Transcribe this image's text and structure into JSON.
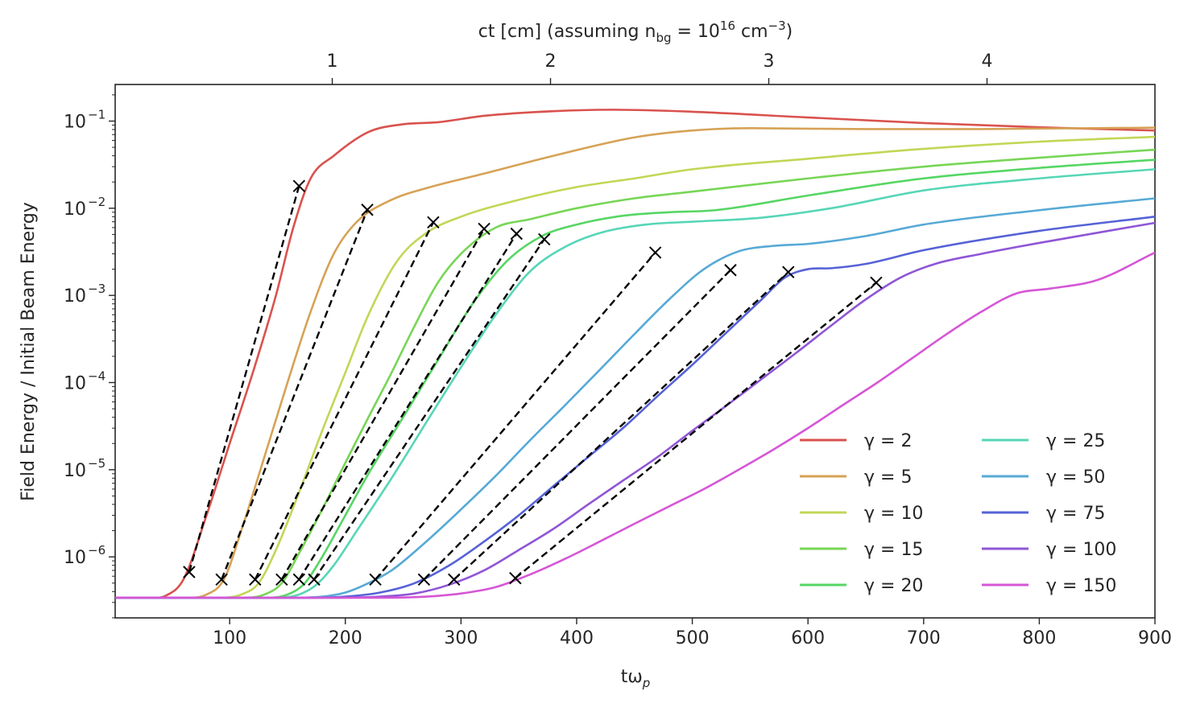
{
  "chart_data": {
    "type": "line",
    "xlabel_main": "tω",
    "xlabel_sub": "p",
    "ylabel": "Field Energy / Initial Beam Energy",
    "top_axis_label": {
      "main": "ct [cm]  (assuming n",
      "sub": "bg",
      "mid": " = 10",
      "sup1": "16",
      "unit": " cm",
      "sup2": "−3",
      "end": ")"
    },
    "top_axis": {
      "ticks": [
        1,
        2,
        3,
        4
      ],
      "x_per_unit": 188.7
    },
    "xlim": [
      1,
      900
    ],
    "ylim_log10": [
      -6.7,
      -0.58
    ],
    "xticks": [
      100,
      200,
      300,
      400,
      500,
      600,
      700,
      800,
      900
    ],
    "yticks": [
      {
        "exp": -1,
        "label": "10",
        "sup": "−1"
      },
      {
        "exp": -2,
        "label": "10",
        "sup": "−2"
      },
      {
        "exp": -3,
        "label": "10",
        "sup": "−3"
      },
      {
        "exp": -4,
        "label": "10",
        "sup": "−4"
      },
      {
        "exp": -5,
        "label": "10",
        "sup": "−5"
      },
      {
        "exp": -6,
        "label": "10",
        "sup": "−6"
      }
    ],
    "legend": {
      "position": "lower-right",
      "columns": 2
    },
    "series": [
      {
        "name": "γ = 2",
        "color": "#d9524e",
        "points": [
          [
            1,
            3.4e-07
          ],
          [
            30,
            3.4e-07
          ],
          [
            45,
            3.6e-07
          ],
          [
            60,
            5.5e-07
          ],
          [
            80,
            3e-06
          ],
          [
            100,
            2e-05
          ],
          [
            120,
            0.00013
          ],
          [
            140,
            0.001
          ],
          [
            155,
            0.006
          ],
          [
            170,
            0.022
          ],
          [
            190,
            0.04
          ],
          [
            220,
            0.075
          ],
          [
            250,
            0.092
          ],
          [
            280,
            0.097
          ],
          [
            320,
            0.115
          ],
          [
            380,
            0.13
          ],
          [
            430,
            0.135
          ],
          [
            500,
            0.128
          ],
          [
            600,
            0.11
          ],
          [
            700,
            0.095
          ],
          [
            800,
            0.085
          ],
          [
            900,
            0.078
          ]
        ],
        "fit": [
          [
            65,
            6.7e-07
          ],
          [
            160,
            0.018
          ]
        ]
      },
      {
        "name": "γ = 5",
        "color": "#d6a256",
        "points": [
          [
            1,
            3.4e-07
          ],
          [
            60,
            3.4e-07
          ],
          [
            80,
            3.7e-07
          ],
          [
            95,
            5.5e-07
          ],
          [
            110,
            2e-06
          ],
          [
            130,
            1.4e-05
          ],
          [
            150,
            0.0001
          ],
          [
            170,
            0.00065
          ],
          [
            190,
            0.003
          ],
          [
            210,
            0.007
          ],
          [
            240,
            0.0125
          ],
          [
            270,
            0.017
          ],
          [
            320,
            0.025
          ],
          [
            380,
            0.04
          ],
          [
            450,
            0.065
          ],
          [
            500,
            0.078
          ],
          [
            550,
            0.083
          ],
          [
            650,
            0.081
          ],
          [
            750,
            0.081
          ],
          [
            900,
            0.084
          ]
        ],
        "fit": [
          [
            93,
            5.5e-07
          ],
          [
            219,
            0.0096
          ]
        ]
      },
      {
        "name": "γ = 10",
        "color": "#c3d656",
        "points": [
          [
            1,
            3.4e-07
          ],
          [
            90,
            3.4e-07
          ],
          [
            110,
            3.7e-07
          ],
          [
            125,
            5e-07
          ],
          [
            140,
            1.2e-06
          ],
          [
            160,
            5.5e-06
          ],
          [
            180,
            2.8e-05
          ],
          [
            200,
            0.00013
          ],
          [
            220,
            0.0006
          ],
          [
            245,
            0.0025
          ],
          [
            270,
            0.0052
          ],
          [
            300,
            0.008
          ],
          [
            350,
            0.0125
          ],
          [
            400,
            0.0175
          ],
          [
            450,
            0.022
          ],
          [
            500,
            0.028
          ],
          [
            600,
            0.037
          ],
          [
            700,
            0.048
          ],
          [
            800,
            0.058
          ],
          [
            900,
            0.066
          ]
        ],
        "fit": [
          [
            122,
            5.5e-07
          ],
          [
            276,
            0.0069
          ]
        ]
      },
      {
        "name": "γ = 15",
        "color": "#77d656",
        "points": [
          [
            1,
            3.4e-07
          ],
          [
            110,
            3.4e-07
          ],
          [
            130,
            3.7e-07
          ],
          [
            145,
            5e-07
          ],
          [
            160,
            1.1e-06
          ],
          [
            180,
            3.5e-06
          ],
          [
            200,
            1.2e-05
          ],
          [
            220,
            4e-05
          ],
          [
            240,
            0.00013
          ],
          [
            260,
            0.00045
          ],
          [
            280,
            0.0014
          ],
          [
            300,
            0.003
          ],
          [
            330,
            0.006
          ],
          [
            360,
            0.0075
          ],
          [
            400,
            0.01
          ],
          [
            450,
            0.013
          ],
          [
            500,
            0.0155
          ],
          [
            600,
            0.022
          ],
          [
            700,
            0.03
          ],
          [
            800,
            0.038
          ],
          [
            900,
            0.047
          ]
        ],
        "fit": [
          [
            145,
            5.5e-07
          ],
          [
            320,
            0.0058
          ]
        ]
      },
      {
        "name": "γ = 20",
        "color": "#56d664",
        "points": [
          [
            1,
            3.4e-07
          ],
          [
            130,
            3.4e-07
          ],
          [
            150,
            3.7e-07
          ],
          [
            165,
            5e-07
          ],
          [
            180,
            1e-06
          ],
          [
            200,
            3e-06
          ],
          [
            220,
            9e-06
          ],
          [
            250,
            4e-05
          ],
          [
            280,
            0.00018
          ],
          [
            310,
            0.0008
          ],
          [
            340,
            0.0025
          ],
          [
            370,
            0.0048
          ],
          [
            400,
            0.0065
          ],
          [
            440,
            0.0082
          ],
          [
            480,
            0.009
          ],
          [
            520,
            0.0095
          ],
          [
            600,
            0.014
          ],
          [
            700,
            0.022
          ],
          [
            800,
            0.029
          ],
          [
            900,
            0.036
          ]
        ],
        "fit": [
          [
            160,
            5.5e-07
          ],
          [
            348,
            0.0051
          ]
        ]
      },
      {
        "name": "γ = 25",
        "color": "#56d6b6",
        "points": [
          [
            1,
            3.4e-07
          ],
          [
            140,
            3.4e-07
          ],
          [
            160,
            3.7e-07
          ],
          [
            175,
            4.8e-07
          ],
          [
            190,
            8e-07
          ],
          [
            210,
            2e-06
          ],
          [
            240,
            8e-06
          ],
          [
            270,
            3.5e-05
          ],
          [
            300,
            0.00015
          ],
          [
            330,
            0.0006
          ],
          [
            360,
            0.0019
          ],
          [
            390,
            0.0036
          ],
          [
            420,
            0.0052
          ],
          [
            460,
            0.0065
          ],
          [
            500,
            0.007
          ],
          [
            560,
            0.0078
          ],
          [
            620,
            0.01
          ],
          [
            700,
            0.016
          ],
          [
            800,
            0.022
          ],
          [
            900,
            0.028
          ]
        ],
        "fit": [
          [
            173,
            5.5e-07
          ],
          [
            372,
            0.0044
          ]
        ]
      },
      {
        "name": "γ = 50",
        "color": "#56a9d6",
        "points": [
          [
            1,
            3.4e-07
          ],
          [
            150,
            3.4e-07
          ],
          [
            180,
            3.5e-07
          ],
          [
            200,
            3.9e-07
          ],
          [
            220,
            5e-07
          ],
          [
            240,
            7e-07
          ],
          [
            270,
            1.5e-06
          ],
          [
            300,
            3.5e-06
          ],
          [
            330,
            8.5e-06
          ],
          [
            360,
            2.2e-05
          ],
          [
            390,
            5.5e-05
          ],
          [
            420,
            0.00014
          ],
          [
            450,
            0.00036
          ],
          [
            480,
            0.0009
          ],
          [
            510,
            0.002
          ],
          [
            540,
            0.0032
          ],
          [
            570,
            0.0037
          ],
          [
            600,
            0.0039
          ],
          [
            650,
            0.0048
          ],
          [
            700,
            0.0065
          ],
          [
            800,
            0.0095
          ],
          [
            900,
            0.013
          ]
        ],
        "fit": [
          [
            226,
            5.5e-07
          ],
          [
            468,
            0.0031
          ]
        ]
      },
      {
        "name": "γ = 75",
        "color": "#5662d6",
        "points": [
          [
            1,
            3.4e-07
          ],
          [
            170,
            3.4e-07
          ],
          [
            200,
            3.5e-07
          ],
          [
            230,
            3.9e-07
          ],
          [
            260,
            5e-07
          ],
          [
            290,
            8e-07
          ],
          [
            320,
            1.5e-06
          ],
          [
            350,
            3e-06
          ],
          [
            380,
            6.5e-06
          ],
          [
            410,
            1.4e-05
          ],
          [
            440,
            3e-05
          ],
          [
            470,
            7e-05
          ],
          [
            500,
            0.00016
          ],
          [
            530,
            0.00038
          ],
          [
            560,
            0.0009
          ],
          [
            580,
            0.0016
          ],
          [
            600,
            0.002
          ],
          [
            620,
            0.00205
          ],
          [
            650,
            0.0023
          ],
          [
            700,
            0.0033
          ],
          [
            800,
            0.0055
          ],
          [
            900,
            0.008
          ]
        ],
        "fit": [
          [
            268,
            5.5e-07
          ],
          [
            533,
            0.00195
          ]
        ]
      },
      {
        "name": "γ = 100",
        "color": "#8f56d6",
        "points": [
          [
            1,
            3.4e-07
          ],
          [
            190,
            3.4e-07
          ],
          [
            230,
            3.5e-07
          ],
          [
            260,
            3.8e-07
          ],
          [
            290,
            4.8e-07
          ],
          [
            320,
            7e-07
          ],
          [
            350,
            1.2e-06
          ],
          [
            380,
            2.1e-06
          ],
          [
            410,
            4e-06
          ],
          [
            440,
            7.5e-06
          ],
          [
            470,
            1.4e-05
          ],
          [
            500,
            2.8e-05
          ],
          [
            530,
            5.5e-05
          ],
          [
            560,
            0.00011
          ],
          [
            590,
            0.00022
          ],
          [
            620,
            0.00045
          ],
          [
            650,
            0.0009
          ],
          [
            680,
            0.0016
          ],
          [
            710,
            0.0023
          ],
          [
            750,
            0.003
          ],
          [
            800,
            0.004
          ],
          [
            900,
            0.0068
          ]
        ],
        "fit": [
          [
            294,
            5.5e-07
          ],
          [
            583,
            0.00185
          ]
        ]
      },
      {
        "name": "γ = 150",
        "color": "#d656d6",
        "points": [
          [
            1,
            3.4e-07
          ],
          [
            230,
            3.4e-07
          ],
          [
            270,
            3.5e-07
          ],
          [
            300,
            3.8e-07
          ],
          [
            330,
            4.5e-07
          ],
          [
            360,
            6.3e-07
          ],
          [
            390,
            9.5e-07
          ],
          [
            420,
            1.5e-06
          ],
          [
            450,
            2.4e-06
          ],
          [
            480,
            3.8e-06
          ],
          [
            510,
            6e-06
          ],
          [
            540,
            1e-05
          ],
          [
            570,
            1.7e-05
          ],
          [
            600,
            3e-05
          ],
          [
            630,
            5.5e-05
          ],
          [
            660,
            0.0001
          ],
          [
            690,
            0.00019
          ],
          [
            720,
            0.00036
          ],
          [
            750,
            0.00065
          ],
          [
            780,
            0.00105
          ],
          [
            810,
            0.0012
          ],
          [
            850,
            0.0015
          ],
          [
            900,
            0.0031
          ]
        ],
        "fit": [
          [
            347,
            5.7e-07
          ],
          [
            659,
            0.0014
          ]
        ]
      }
    ]
  }
}
